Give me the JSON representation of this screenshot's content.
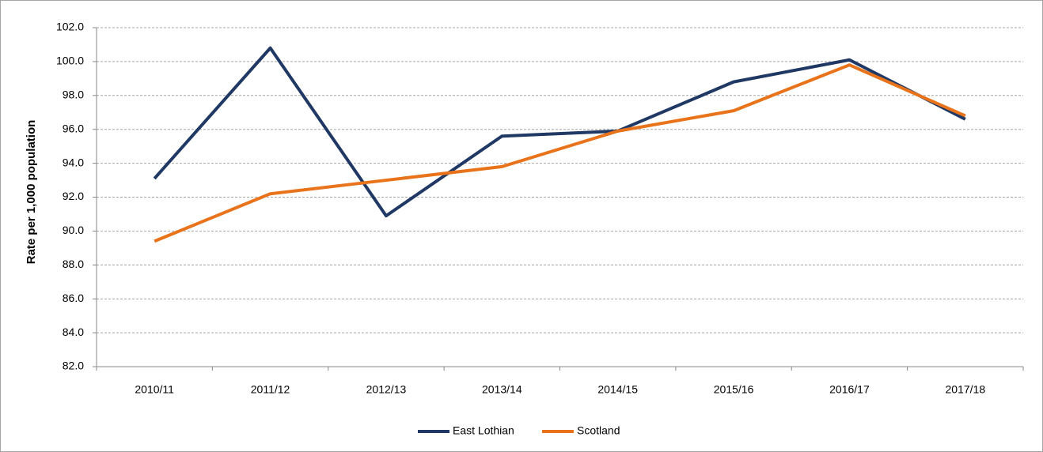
{
  "chart_data": {
    "type": "line",
    "y_label": "Rate per 1,000 population",
    "categories": [
      "2010/11",
      "2011/12",
      "2012/13",
      "2013/14",
      "2014/15",
      "2015/16",
      "2016/17",
      "2017/18"
    ],
    "series": [
      {
        "name": "East Lothian",
        "color": "#1f3864",
        "values": [
          93.1,
          100.8,
          90.9,
          95.6,
          95.9,
          98.8,
          100.1,
          96.6
        ]
      },
      {
        "name": "Scotland",
        "color": "#e8731a",
        "values": [
          89.4,
          92.2,
          93.0,
          93.8,
          95.9,
          97.1,
          99.8,
          96.8
        ]
      }
    ],
    "ylim": [
      82,
      102
    ],
    "yticks": [
      {
        "value": 82,
        "label": "82.0"
      },
      {
        "value": 84,
        "label": "84.0"
      },
      {
        "value": 86,
        "label": "86.0"
      },
      {
        "value": 88,
        "label": "88.0"
      },
      {
        "value": 90,
        "label": "90.0"
      },
      {
        "value": 92,
        "label": "92.0"
      },
      {
        "value": 94,
        "label": "94.0"
      },
      {
        "value": 96,
        "label": "96.0"
      },
      {
        "value": 98,
        "label": "98.0"
      },
      {
        "value": 100,
        "label": "100.0"
      },
      {
        "value": 102,
        "label": "102.0"
      }
    ],
    "grid": true,
    "legend": "bottom"
  }
}
